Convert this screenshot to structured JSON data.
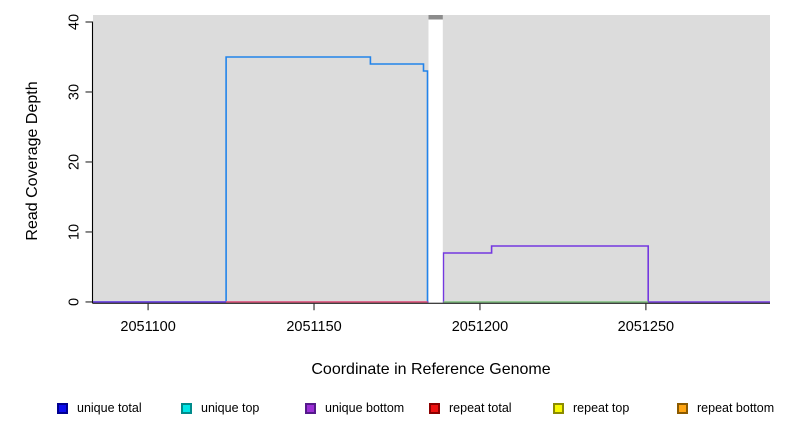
{
  "chart_data": {
    "type": "line",
    "title": "",
    "xlabel": "Coordinate in Reference Genome",
    "ylabel": "Read Coverage Depth",
    "x_ticks": [
      2051100,
      2051150,
      2051200,
      2051250
    ],
    "y_ticks": [
      0,
      10,
      20,
      30,
      40
    ],
    "x_range": [
      2051083.4,
      2051287.4
    ],
    "y_range": [
      -0.15,
      41.0
    ],
    "grid": false,
    "plot_bg": "#dcdcdc",
    "series": [
      {
        "name": "unique total",
        "color": "#2283ea",
        "points": [
          [
            2051083.4,
            0
          ],
          [
            2051123.5,
            0
          ],
          [
            2051123.5,
            35
          ],
          [
            2051167,
            35
          ],
          [
            2051167,
            34
          ],
          [
            2051183,
            34
          ],
          [
            2051183,
            33
          ],
          [
            2051184.2,
            33
          ],
          [
            2051184.2,
            0
          ]
        ]
      },
      {
        "name": "unique bottom",
        "color": "#7438e0",
        "points": [
          [
            2051083.4,
            0
          ],
          [
            2051189,
            0
          ],
          [
            2051189,
            7
          ],
          [
            2051203.5,
            7
          ],
          [
            2051203.5,
            8
          ],
          [
            2051250.7,
            8
          ],
          [
            2051250.7,
            0
          ],
          [
            2051287.4,
            0
          ]
        ]
      },
      {
        "name": "repeat total",
        "color": "#ef6075",
        "points": [
          [
            2051123.5,
            0
          ],
          [
            2051184.2,
            0
          ]
        ]
      },
      {
        "name": "unlabeled green baseline",
        "color": "#7cbf7c",
        "points": [
          [
            2051189,
            0
          ],
          [
            2051250.7,
            0
          ]
        ]
      }
    ],
    "gap_band": {
      "x_start": 2051184.5,
      "x_end": 2051188.8,
      "fill": "#ffffff",
      "cap_color": "#8c8c8c"
    },
    "legend": [
      {
        "label": "unique total",
        "fill": "#0d0dee",
        "border": "#000090"
      },
      {
        "label": "unique top",
        "fill": "#00e6e6",
        "border": "#008b8b"
      },
      {
        "label": "unique bottom",
        "fill": "#9c2fd6",
        "border": "#551a8b"
      },
      {
        "label": "repeat total",
        "fill": "#ee1111",
        "border": "#8b0000"
      },
      {
        "label": "repeat top",
        "fill": "#f8f800",
        "border": "#8b8b00"
      },
      {
        "label": "repeat bottom",
        "fill": "#ffa513",
        "border": "#8b5a00"
      }
    ],
    "legend_position": "bottom"
  }
}
